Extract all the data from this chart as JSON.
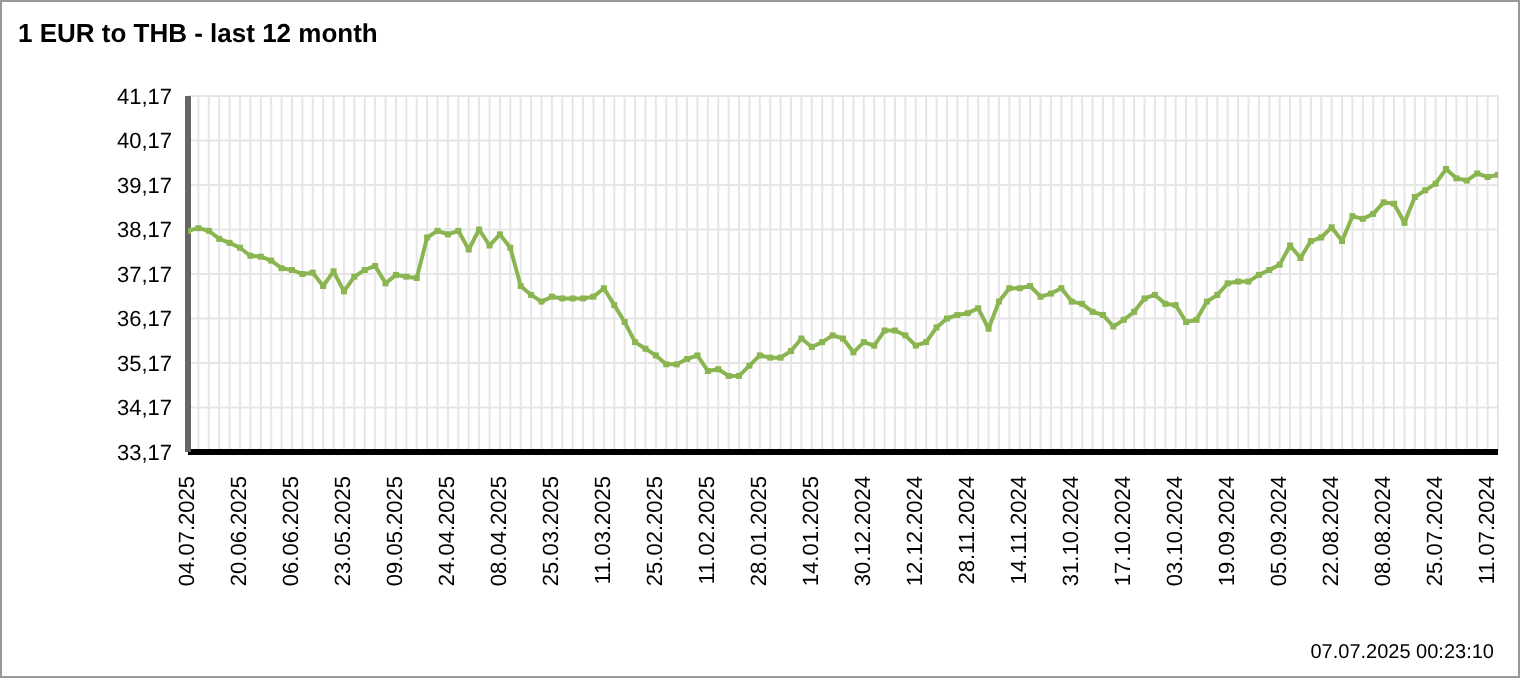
{
  "chart_data": {
    "type": "line",
    "title": "1 EUR to THB - last 12 month",
    "categories": [
      "04.07.2025",
      null,
      null,
      null,
      null,
      "20.06.2025",
      null,
      null,
      null,
      null,
      "06.06.2025",
      null,
      null,
      null,
      null,
      "23.05.2025",
      null,
      null,
      null,
      null,
      "09.05.2025",
      null,
      null,
      null,
      null,
      "24.04.2025",
      null,
      null,
      null,
      null,
      "08.04.2025",
      null,
      null,
      null,
      null,
      "25.03.2025",
      null,
      null,
      null,
      null,
      "11.03.2025",
      null,
      null,
      null,
      null,
      "25.02.2025",
      null,
      null,
      null,
      null,
      "11.02.2025",
      null,
      null,
      null,
      null,
      "28.01.2025",
      null,
      null,
      null,
      null,
      "14.01.2025",
      null,
      null,
      null,
      null,
      "30.12.2024",
      null,
      null,
      null,
      null,
      "12.12.2024",
      null,
      null,
      null,
      null,
      "28.11.2024",
      null,
      null,
      null,
      null,
      "14.11.2024",
      null,
      null,
      null,
      null,
      "31.10.2024",
      null,
      null,
      null,
      null,
      "17.10.2024",
      null,
      null,
      null,
      null,
      "03.10.2024",
      null,
      null,
      null,
      null,
      "19.09.2024",
      null,
      null,
      null,
      null,
      "05.09.2024",
      null,
      null,
      null,
      null,
      "22.08.2024",
      null,
      null,
      null,
      null,
      "08.08.2024",
      null,
      null,
      null,
      null,
      "25.07.2024",
      null,
      null,
      null,
      null,
      "11.07.2024",
      null
    ],
    "series": [
      {
        "color": "#8ab550",
        "values": [
          38.14,
          38.2,
          38.14,
          37.96,
          37.87,
          37.76,
          37.58,
          37.56,
          37.47,
          37.3,
          37.26,
          37.17,
          37.2,
          36.9,
          37.23,
          36.78,
          37.11,
          37.26,
          37.35,
          36.96,
          37.15,
          37.11,
          37.08,
          37.99,
          38.14,
          38.06,
          38.14,
          37.72,
          38.17,
          37.81,
          38.06,
          37.76,
          36.9,
          36.7,
          36.55,
          36.66,
          36.62,
          36.62,
          36.62,
          36.66,
          36.85,
          36.47,
          36.09,
          35.64,
          35.49,
          35.34,
          35.14,
          35.14,
          35.26,
          35.34,
          34.99,
          35.03,
          34.88,
          34.88,
          35.11,
          35.34,
          35.29,
          35.29,
          35.44,
          35.72,
          35.53,
          35.64,
          35.79,
          35.72,
          35.41,
          35.64,
          35.56,
          35.9,
          35.9,
          35.79,
          35.56,
          35.64,
          35.97,
          36.17,
          36.25,
          36.29,
          36.4,
          35.94,
          36.55,
          36.85,
          36.85,
          36.9,
          36.66,
          36.73,
          36.85,
          36.55,
          36.5,
          36.32,
          36.25,
          35.99,
          36.14,
          36.32,
          36.62,
          36.7,
          36.5,
          36.47,
          36.09,
          36.14,
          36.55,
          36.7,
          36.96,
          37.0,
          37.0,
          37.15,
          37.26,
          37.38,
          37.81,
          37.53,
          37.91,
          37.99,
          38.22,
          37.91,
          38.47,
          38.41,
          38.52,
          38.78,
          38.75,
          38.32,
          38.9,
          39.05,
          39.2,
          39.53,
          39.32,
          39.27,
          39.43,
          39.35,
          39.4
        ]
      }
    ],
    "ylim": [
      33.17,
      41.17
    ],
    "yticks": [
      {
        "value": 33.17,
        "label": "33,17"
      },
      {
        "value": 34.17,
        "label": "34,17"
      },
      {
        "value": 35.17,
        "label": "35,17"
      },
      {
        "value": 36.17,
        "label": "36,17"
      },
      {
        "value": 37.17,
        "label": "37,17"
      },
      {
        "value": 38.17,
        "label": "38,17"
      },
      {
        "value": 39.17,
        "label": "39,17"
      },
      {
        "value": 40.17,
        "label": "40,17"
      },
      {
        "value": 41.17,
        "label": "41,17"
      }
    ],
    "grid": true,
    "marker": "square",
    "line_style": "solid",
    "legend": false,
    "annotations": [
      "07.07.2025 00:23:10"
    ]
  }
}
